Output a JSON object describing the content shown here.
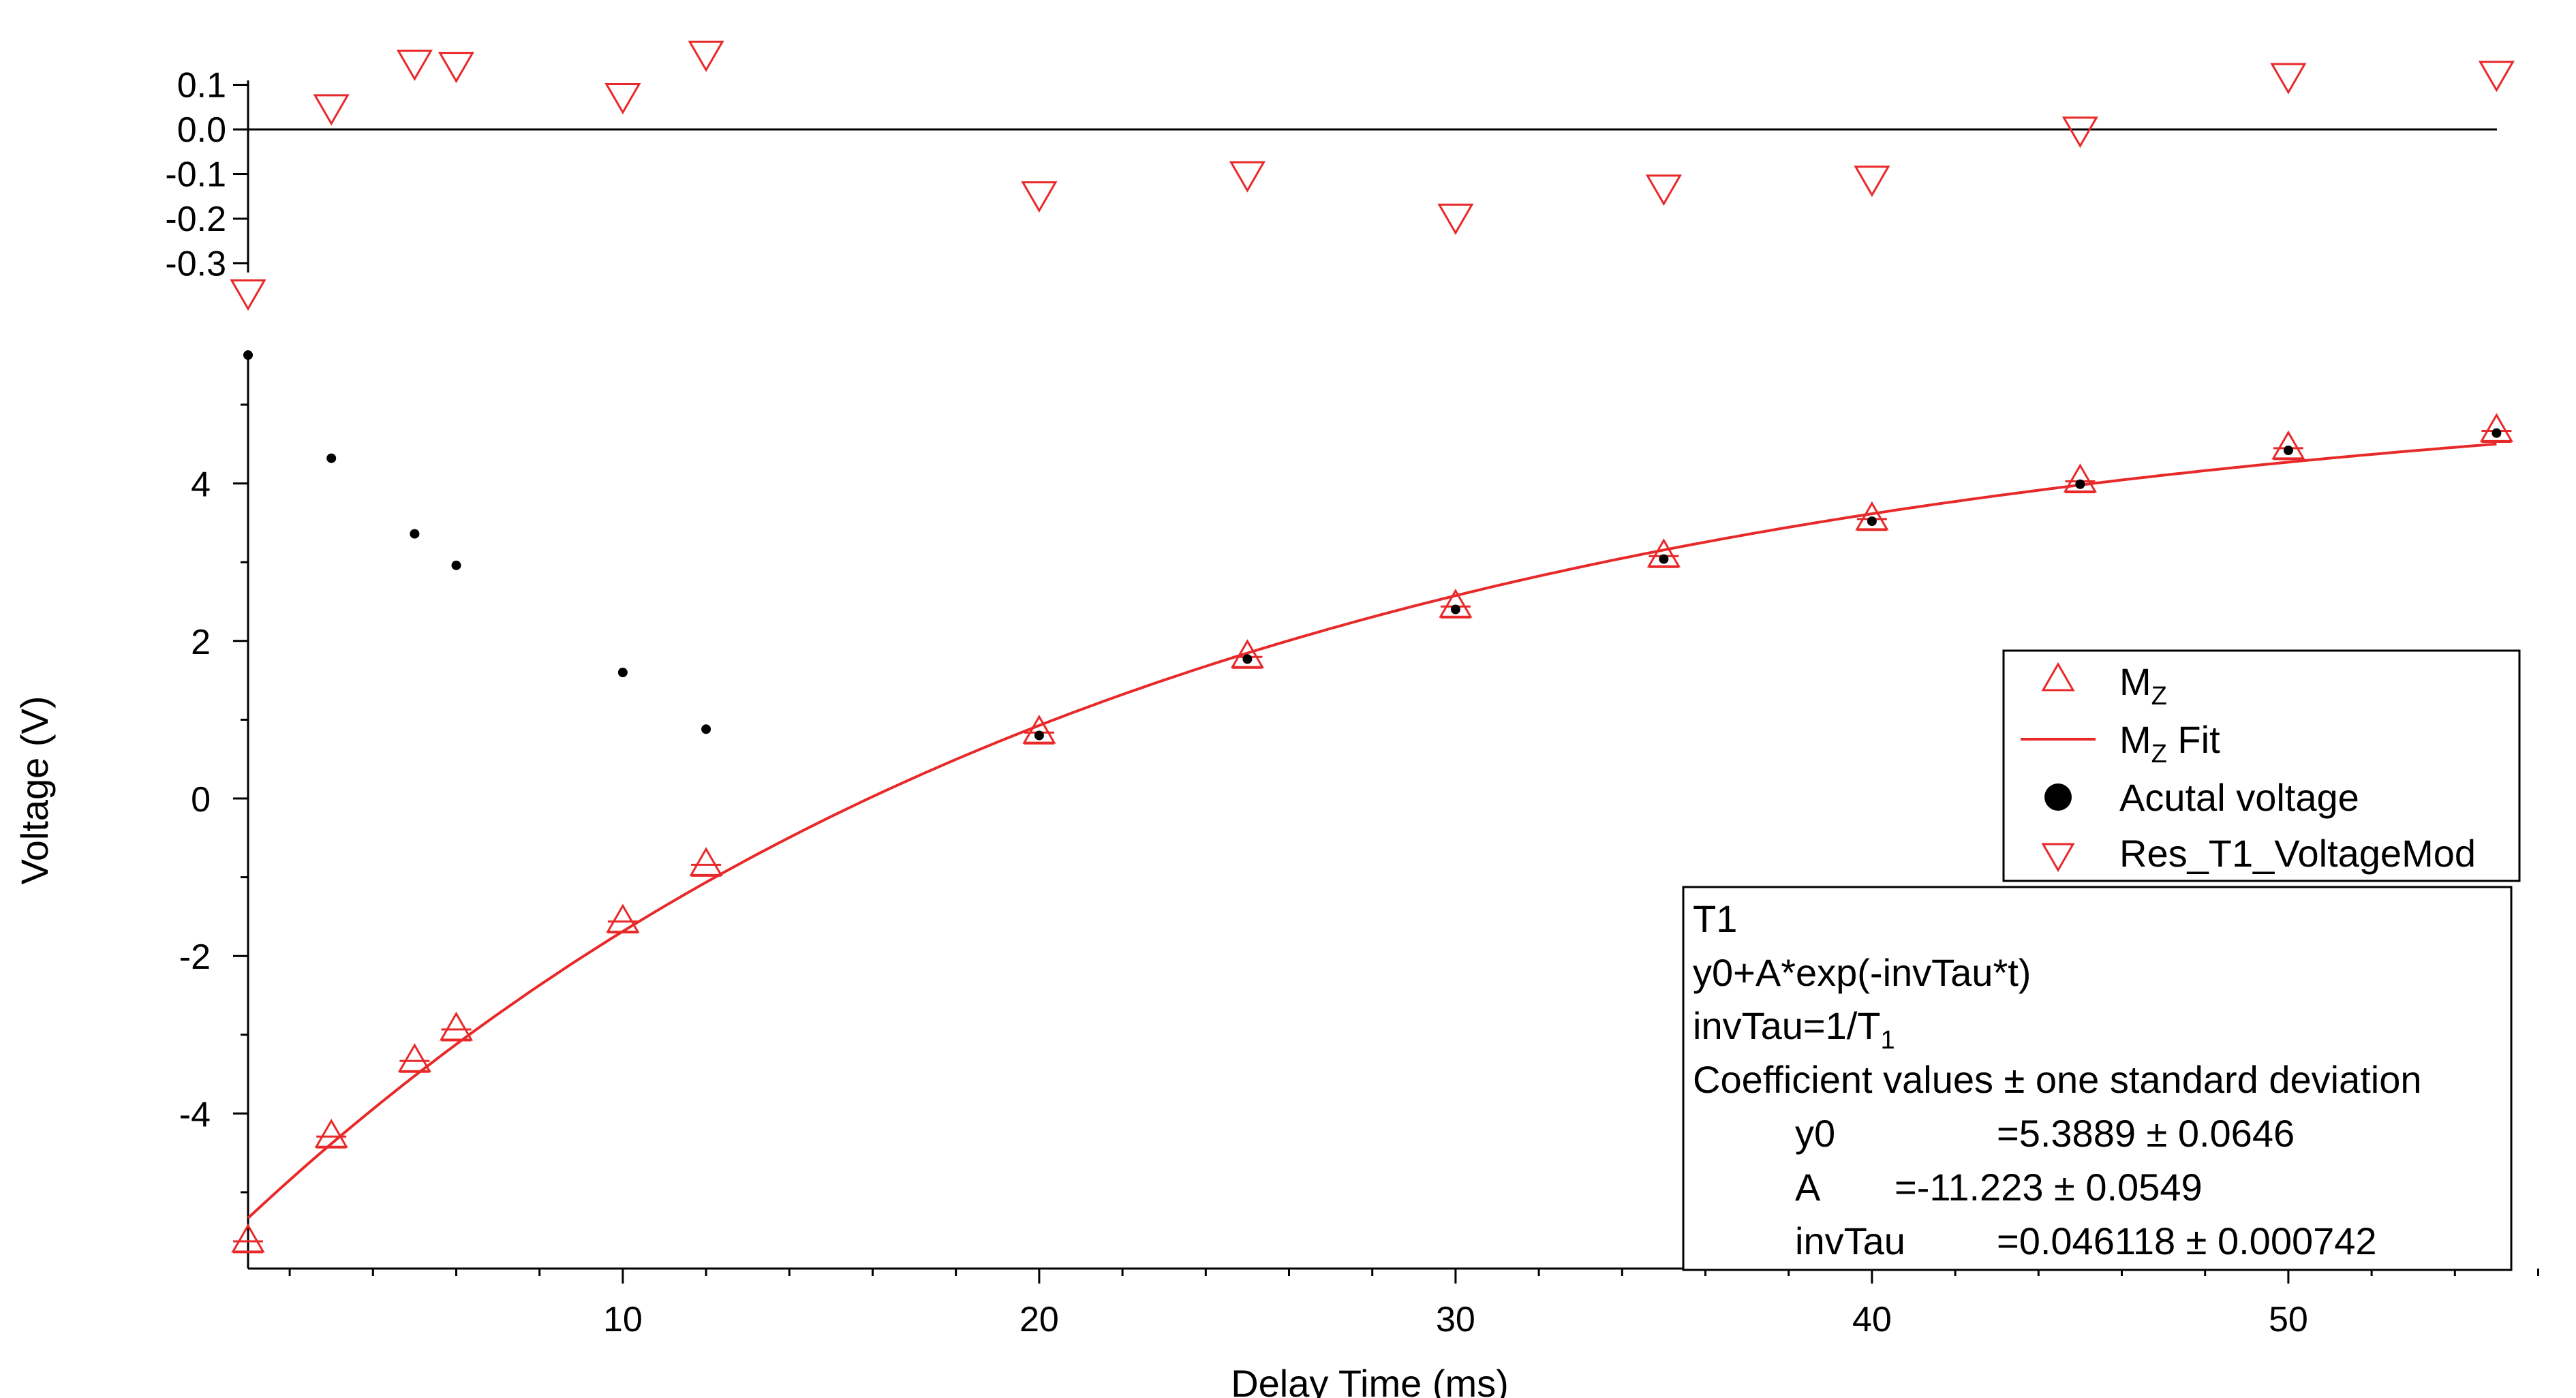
{
  "chart_data": {
    "type": "scatter",
    "x": [
      1,
      3,
      5,
      6,
      10,
      12,
      20,
      25,
      30,
      35,
      40,
      45,
      50,
      55
    ],
    "xlabel": "Delay Time (ms)",
    "ylabel": "Voltage (V)",
    "xlim": [
      1,
      56
    ],
    "ylim": [
      -5.8,
      6.3
    ],
    "x_ticks": [
      "10",
      "20",
      "30",
      "40",
      "50"
    ],
    "y_ticks": [
      "-4",
      "-2",
      "0",
      "2",
      "4"
    ],
    "residual_ylim": [
      -0.39,
      0.2
    ],
    "residual_ticks": [
      "0.1",
      "0.0",
      "-0.1",
      "-0.2",
      "-0.3"
    ],
    "legend_position": "right, mid-height",
    "colors": {
      "mz": "#e8292a",
      "actual": "#000000",
      "zero_line": "#000000"
    },
    "series": [
      {
        "name": "MZ",
        "legend_label": "M",
        "legend_sub": "Z",
        "marker": "triangle-up",
        "values": [
          -5.64,
          -4.31,
          -3.35,
          -2.95,
          -1.58,
          -0.86,
          0.82,
          1.78,
          2.42,
          3.06,
          3.53,
          4.01,
          4.43,
          4.65
        ]
      },
      {
        "name": "MZ Fit",
        "legend_label": "M",
        "legend_sub": "Z",
        "legend_suffix": " Fit",
        "marker": "line",
        "model": {
          "y0": 5.3889,
          "A": -11.223,
          "invTau": 0.046118
        },
        "fit_range": [
          1,
          55
        ]
      },
      {
        "name": "Acutal voltage",
        "legend_label": "Acutal voltage",
        "marker": "dot",
        "values": [
          5.63,
          4.32,
          3.36,
          2.96,
          1.6,
          0.88,
          0.8,
          1.77,
          2.4,
          3.04,
          3.52,
          3.99,
          4.42,
          4.64
        ]
      },
      {
        "name": "Res_T1_VoltageMod",
        "legend_label": "Res_T1_VoltageMod",
        "marker": "triangle-down",
        "axis": "residual",
        "values": [
          -0.36,
          0.055,
          0.155,
          0.15,
          0.08,
          0.175,
          -0.14,
          -0.095,
          -0.19,
          -0.125,
          -0.105,
          0.005,
          0.125,
          0.13
        ]
      }
    ],
    "fit_info": {
      "title": "T1",
      "equation": "y0+A*exp(-invTau*t)",
      "def_prefix": "invTau=1/T",
      "def_sub": "1",
      "coef_header": "Coefficient values ± one standard deviation",
      "coefficients": [
        {
          "name": "y0",
          "value": "=5.3889 ± 0.0646"
        },
        {
          "name": "A",
          "value": "=-11.223 ± 0.0549"
        },
        {
          "name": "invTau",
          "value": "=0.046118 ± 0.000742"
        }
      ]
    }
  }
}
